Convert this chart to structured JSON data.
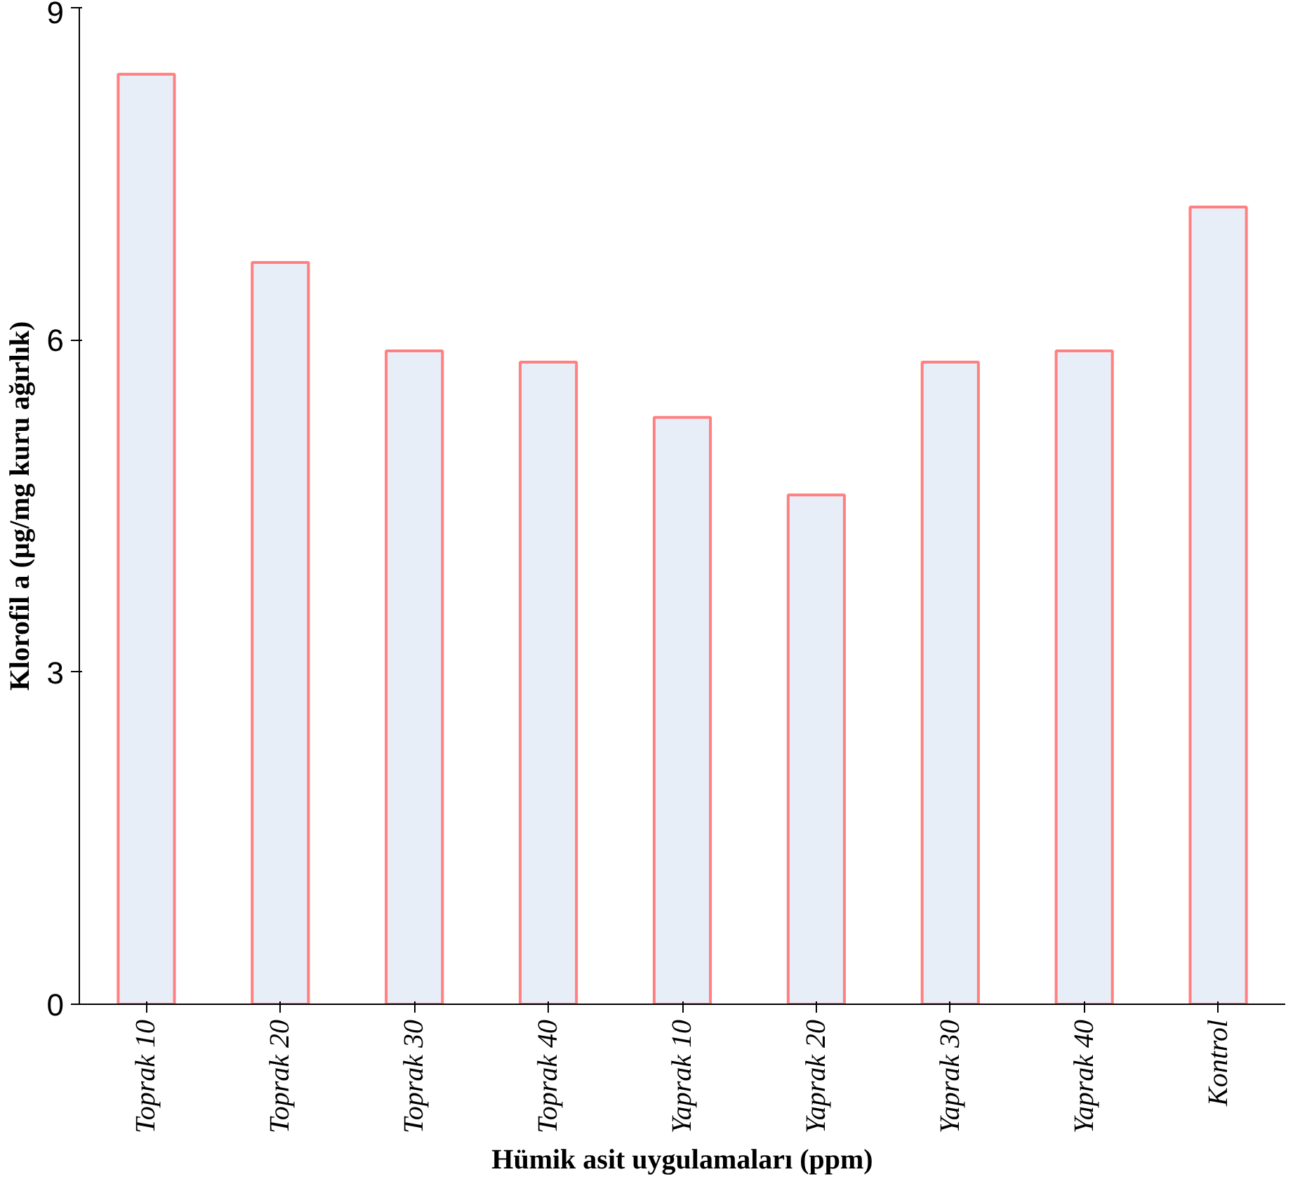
{
  "chart_data": {
    "type": "bar",
    "xlabel": "Hümik asit uygulamaları (ppm)",
    "ylabel": "Klorofil a (µg/mg kuru ağırlık)",
    "categories": [
      "Toprak 10",
      "Toprak 20",
      "Toprak 30",
      "Toprak 40",
      "Yaprak 10",
      "Yaprak 20",
      "Yaprak 30",
      "Yaprak 40",
      "Kontrol"
    ],
    "values": [
      8.4,
      6.7,
      5.9,
      5.8,
      5.3,
      4.6,
      5.8,
      5.9,
      7.2
    ],
    "color": "#e8eef8",
    "ylim": [
      0,
      9
    ],
    "yticks": [
      0,
      3,
      6,
      9
    ],
    "grid": false
  }
}
